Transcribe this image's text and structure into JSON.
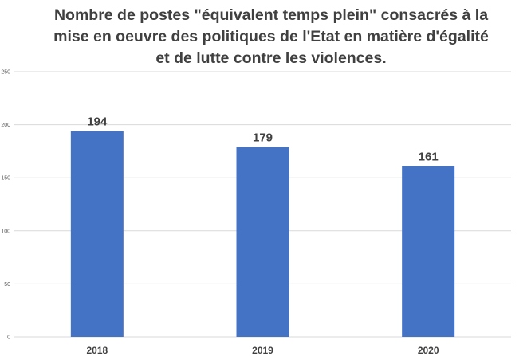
{
  "chart_data": {
    "type": "bar",
    "title_lines": [
      "Nombre de postes \"équivalent temps plein\" consacrés à la",
      "mise en oeuvre des politiques de l'Etat en matière d'égalité",
      "et de lutte contre les violences."
    ],
    "categories": [
      "2018",
      "2019",
      "2020"
    ],
    "values": [
      194,
      179,
      161
    ],
    "data_labels": [
      "194",
      "179",
      "161"
    ],
    "yticks": [
      "0",
      "50",
      "100",
      "150",
      "200",
      "250"
    ],
    "ylim": [
      0,
      250
    ],
    "xlabel": "",
    "ylabel": "",
    "grid": true,
    "legend": "none",
    "bar_color": "#4472C4",
    "grid_color": "#D9D9D9"
  }
}
